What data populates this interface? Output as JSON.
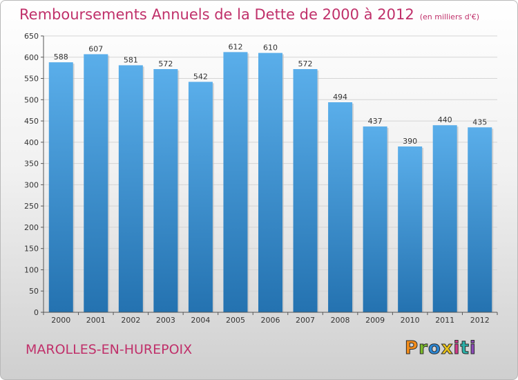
{
  "title": "Remboursements Annuels de la Dette de 2000 à 2012",
  "subtitle": "(en milliers d'€)",
  "commune": "MAROLLES-EN-HUREPOIX",
  "logo": {
    "text": "Proxiti",
    "colors": [
      "#f28c1a",
      "#7cbb2a",
      "#2a86d4",
      "#e8c21a",
      "#d23a8a",
      "#2ab0a8",
      "#8c4ab8"
    ]
  },
  "colors": {
    "accent": "#c0306a",
    "bar_top": "#5aaeea",
    "bar_bottom": "#2472b0"
  },
  "chart_data": {
    "type": "bar",
    "categories": [
      "2000",
      "2001",
      "2002",
      "2003",
      "2004",
      "2005",
      "2006",
      "2007",
      "2008",
      "2009",
      "2010",
      "2011",
      "2012"
    ],
    "values": [
      588,
      607,
      581,
      572,
      542,
      612,
      610,
      572,
      494,
      437,
      390,
      440,
      435
    ],
    "title": "Remboursements Annuels de la Dette de 2000 à 2012",
    "ylim": [
      0,
      650
    ],
    "yticks": [
      0,
      50,
      100,
      150,
      200,
      250,
      300,
      350,
      400,
      450,
      500,
      550,
      600,
      650
    ],
    "grid": true
  }
}
